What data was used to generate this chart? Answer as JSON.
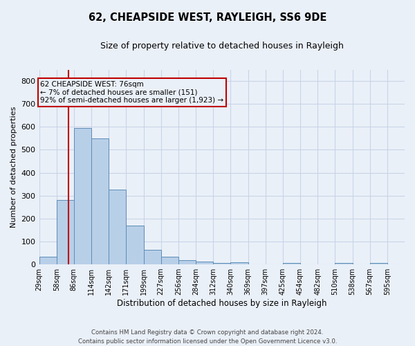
{
  "title": "62, CHEAPSIDE WEST, RAYLEIGH, SS6 9DE",
  "subtitle": "Size of property relative to detached houses in Rayleigh",
  "xlabel": "Distribution of detached houses by size in Rayleigh",
  "ylabel": "Number of detached properties",
  "bar_labels": [
    "29sqm",
    "58sqm",
    "86sqm",
    "114sqm",
    "142sqm",
    "171sqm",
    "199sqm",
    "227sqm",
    "256sqm",
    "284sqm",
    "312sqm",
    "340sqm",
    "369sqm",
    "397sqm",
    "425sqm",
    "454sqm",
    "482sqm",
    "510sqm",
    "538sqm",
    "567sqm",
    "595sqm"
  ],
  "bar_values": [
    33,
    280,
    595,
    550,
    325,
    168,
    65,
    33,
    18,
    11,
    5,
    9,
    0,
    0,
    5,
    0,
    0,
    5,
    0,
    5,
    0
  ],
  "bar_color": "#b8cfe8",
  "bar_edge_color": "#5b8db8",
  "annotation_title": "62 CHEAPSIDE WEST: 76sqm",
  "annotation_line1": "← 7% of detached houses are smaller (151)",
  "annotation_line2": "92% of semi-detached houses are larger (1,923) →",
  "vline_color": "#c00000",
  "annotation_box_color": "#c00000",
  "ylim": [
    0,
    850
  ],
  "yticks": [
    0,
    100,
    200,
    300,
    400,
    500,
    600,
    700,
    800
  ],
  "grid_color": "#c8d4e8",
  "bg_color": "#eaf0f8",
  "footnote": "Contains HM Land Registry data © Crown copyright and database right 2024.\nContains public sector information licensed under the Open Government Licence v3.0.",
  "bin_width": 28,
  "vline_x": 76
}
